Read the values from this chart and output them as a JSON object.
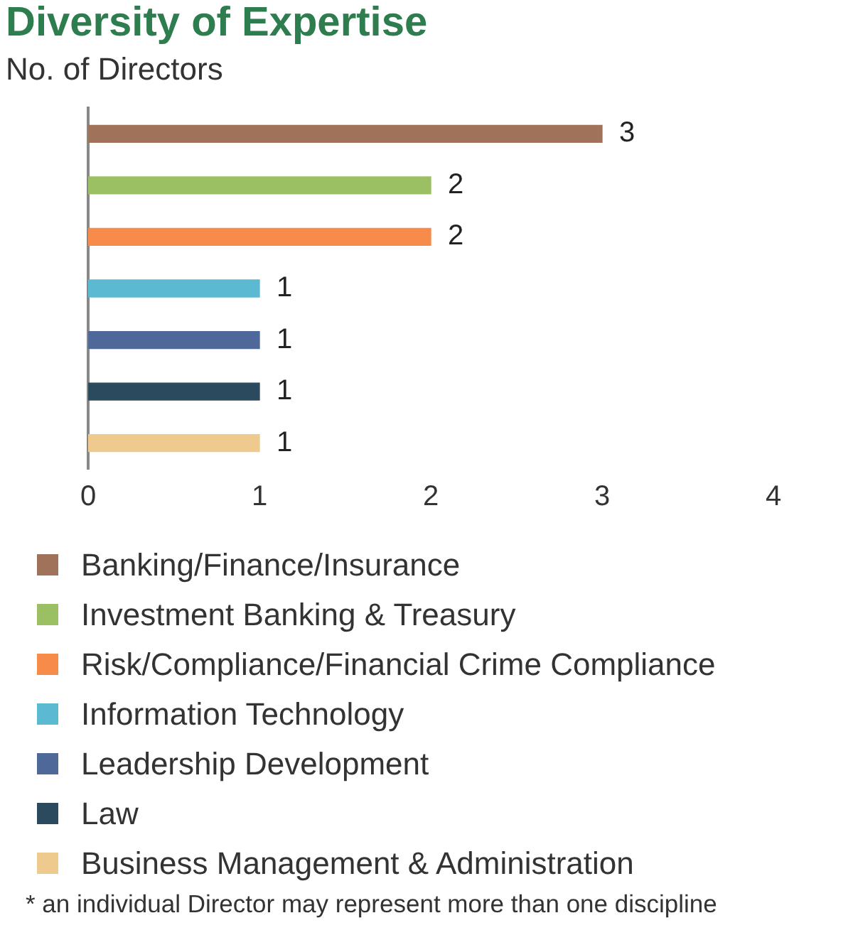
{
  "chart_data": {
    "type": "bar",
    "orientation": "horizontal",
    "title": "Diversity of Expertise",
    "subtitle": "No. of Directors",
    "categories": [
      null,
      null,
      null,
      null,
      null,
      null,
      null
    ],
    "series": [
      {
        "name": "Banking/Finance/Insurance",
        "color": "#a0725a",
        "values": [
          3,
          null,
          null,
          null,
          null,
          null,
          null
        ]
      },
      {
        "name": "Investment Banking & Treasury",
        "color": "#9bbf63",
        "values": [
          null,
          2,
          null,
          null,
          null,
          null,
          null
        ]
      },
      {
        "name": "Risk/Compliance/Financial Crime Compliance",
        "color": "#f78b4a",
        "values": [
          null,
          null,
          2,
          null,
          null,
          null,
          null
        ]
      },
      {
        "name": "Information Technology",
        "color": "#5cb9d2",
        "values": [
          null,
          null,
          null,
          1,
          null,
          null,
          null
        ]
      },
      {
        "name": "Leadership Development",
        "color": "#4f689a",
        "values": [
          null,
          null,
          null,
          null,
          1,
          null,
          null
        ]
      },
      {
        "name": "Law",
        "color": "#2c4a5e",
        "values": [
          null,
          null,
          null,
          null,
          null,
          1,
          null
        ]
      },
      {
        "name": "Business Management & Administration",
        "color": "#efca8e",
        "values": [
          null,
          null,
          null,
          null,
          null,
          null,
          1
        ]
      }
    ],
    "xlim": [
      0,
      4
    ],
    "xticks": [
      0,
      1,
      2,
      3,
      4
    ],
    "grid": false,
    "legend": "bottom",
    "data_labels": true,
    "annotations": [
      "* an individual Director may represent more than one discipline"
    ]
  }
}
